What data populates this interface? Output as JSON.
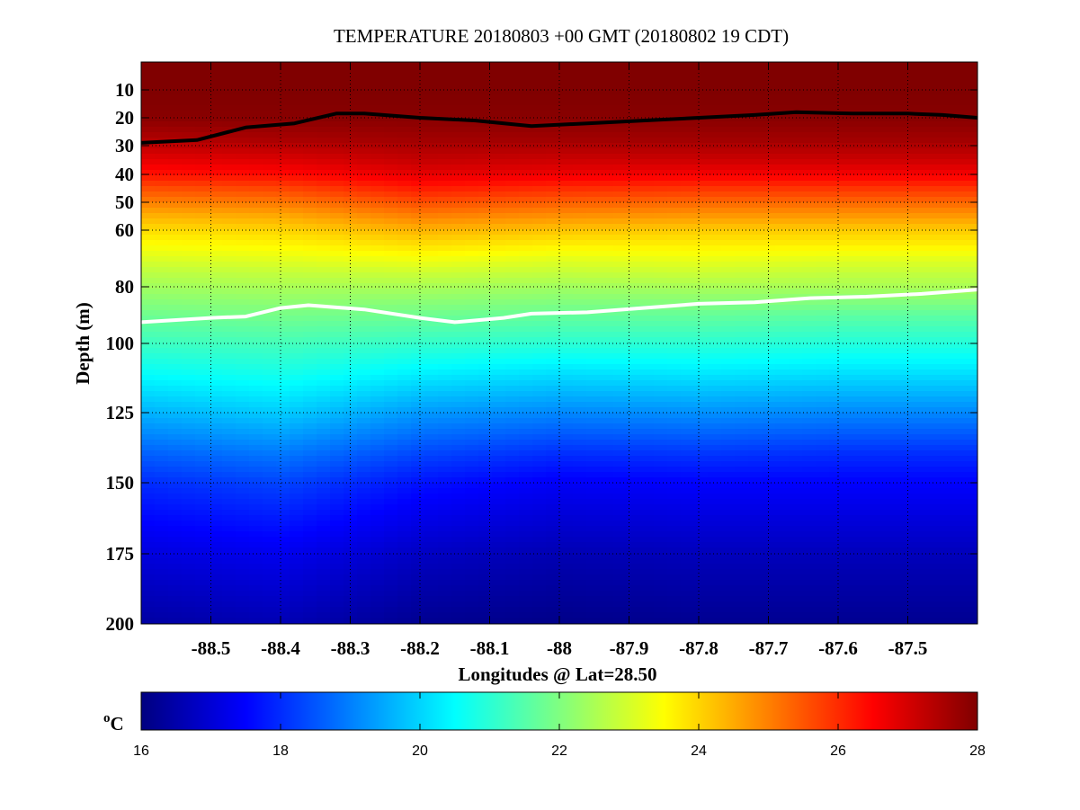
{
  "chart_data": {
    "type": "heatmap",
    "title": "TEMPERATURE 20180803 +00 GMT (20180802 19 CDT)",
    "xlabel": "Longitudes @ Lat=28.50",
    "ylabel": "Depth (m)",
    "x_range": [
      -88.6,
      -87.4
    ],
    "y_range_depth_m": [
      0,
      200
    ],
    "y_scale": "nonlinear (stretched near surface)",
    "x_ticks": [
      -88.5,
      -88.4,
      -88.3,
      -88.2,
      -88.1,
      -88,
      -87.9,
      -87.8,
      -87.7,
      -87.6,
      -87.5
    ],
    "x_tick_labels": [
      "-88.5",
      "-88.4",
      "-88.3",
      "-88.2",
      "-88.1",
      "-88",
      "-87.9",
      "-87.8",
      "-87.7",
      "-87.6",
      "-87.5"
    ],
    "y_ticks": [
      10,
      20,
      30,
      40,
      50,
      60,
      80,
      100,
      125,
      150,
      175,
      200
    ],
    "y_tick_labels": [
      "10",
      "20",
      "30",
      "40",
      "50",
      "60",
      "80",
      "100",
      "125",
      "150",
      "175",
      "200"
    ],
    "grid": true,
    "colorbar": {
      "label": "oC",
      "min": 16,
      "max": 28,
      "ticks": [
        16,
        18,
        20,
        22,
        24,
        26,
        28
      ],
      "tick_labels": [
        "16",
        "18",
        "20",
        "22",
        "24",
        "26",
        "28"
      ],
      "colormap": "jet"
    },
    "temperature_profiles": {
      "depth_m": [
        0,
        10,
        20,
        28,
        35,
        40,
        45,
        50,
        55,
        60,
        65,
        70,
        75,
        80,
        90,
        100,
        110,
        125,
        140,
        150,
        175,
        200
      ],
      "longitude": [
        -88.6,
        -88.4,
        -88.2,
        -88.0,
        -87.8,
        -87.6,
        -87.4
      ],
      "temp_c": [
        [
          28.0,
          28.0,
          27.9,
          27.4,
          26.8,
          26.3,
          25.6,
          25.0,
          24.4,
          23.9,
          23.5,
          23.1,
          22.7,
          22.4,
          21.8,
          21.2,
          20.6,
          19.6,
          18.6,
          18.0,
          17.1,
          16.4
        ],
        [
          28.0,
          28.0,
          27.9,
          27.5,
          26.9,
          26.4,
          25.7,
          25.1,
          24.5,
          24.0,
          23.6,
          23.2,
          22.8,
          22.5,
          21.9,
          21.3,
          20.8,
          19.9,
          18.9,
          18.3,
          17.3,
          16.6
        ],
        [
          28.0,
          28.0,
          27.9,
          27.6,
          27.2,
          26.8,
          26.2,
          25.6,
          25.0,
          24.4,
          23.9,
          23.4,
          22.9,
          22.5,
          21.8,
          21.1,
          20.4,
          19.3,
          18.3,
          17.7,
          16.8,
          16.2
        ],
        [
          28.0,
          28.0,
          27.9,
          27.6,
          27.1,
          26.7,
          26.0,
          25.4,
          24.8,
          24.2,
          23.7,
          23.2,
          22.8,
          22.4,
          21.7,
          21.0,
          20.2,
          19.1,
          18.0,
          17.4,
          16.6,
          16.1
        ],
        [
          28.0,
          28.0,
          27.9,
          27.6,
          27.1,
          26.6,
          25.9,
          25.3,
          24.7,
          24.1,
          23.7,
          23.3,
          22.9,
          22.5,
          21.7,
          21.0,
          20.3,
          19.2,
          18.1,
          17.5,
          16.7,
          16.2
        ],
        [
          28.0,
          28.0,
          27.9,
          27.6,
          27.1,
          26.6,
          25.9,
          25.3,
          24.7,
          24.1,
          23.7,
          23.2,
          22.8,
          22.5,
          21.6,
          20.9,
          20.2,
          19.1,
          18.0,
          17.5,
          16.7,
          16.2
        ],
        [
          28.0,
          28.0,
          27.9,
          27.6,
          27.1,
          26.6,
          25.9,
          25.3,
          24.7,
          24.1,
          23.7,
          23.2,
          22.8,
          22.5,
          21.6,
          20.9,
          20.2,
          19.1,
          18.0,
          17.5,
          16.7,
          16.2
        ]
      ]
    },
    "contour_lines": [
      {
        "color": "#000000",
        "longitude": [
          -88.6,
          -88.52,
          -88.45,
          -88.38,
          -88.32,
          -88.28,
          -88.2,
          -88.12,
          -88.04,
          -87.96,
          -87.88,
          -87.8,
          -87.72,
          -87.66,
          -87.58,
          -87.5,
          -87.45,
          -87.4
        ],
        "depth_m": [
          29,
          28,
          23.5,
          22,
          18.5,
          18.5,
          20,
          21,
          23,
          22,
          21,
          20,
          19,
          18,
          18.5,
          18.5,
          19,
          20
        ]
      },
      {
        "color": "#ffffff",
        "longitude": [
          -88.6,
          -88.5,
          -88.45,
          -88.4,
          -88.36,
          -88.28,
          -88.2,
          -88.15,
          -88.08,
          -88.04,
          -87.96,
          -87.88,
          -87.8,
          -87.72,
          -87.64,
          -87.56,
          -87.48,
          -87.4
        ],
        "depth_m": [
          92.5,
          91,
          90.5,
          87.5,
          86.5,
          88,
          91,
          92.5,
          91,
          89.5,
          89,
          87.5,
          86,
          85.5,
          84,
          83.5,
          82.5,
          81
        ]
      }
    ]
  }
}
